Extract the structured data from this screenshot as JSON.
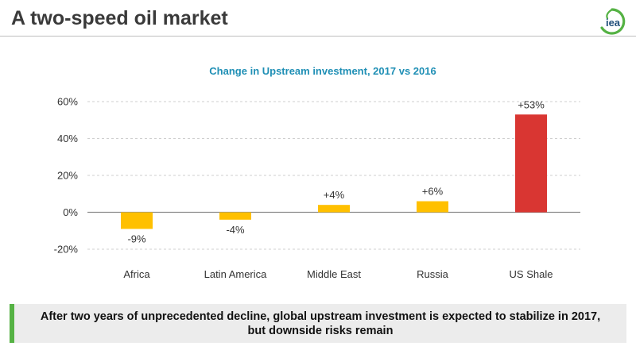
{
  "header": {
    "title": "A two-speed oil market",
    "logo_text": "iea"
  },
  "colors": {
    "regular_bar": "#ffc000",
    "highlight_bar": "#d93632",
    "title_color": "#1f8fb5",
    "footer_accent": "#55b244"
  },
  "chart_data": {
    "type": "bar",
    "title": "Change in Upstream investment, 2017 vs 2016",
    "categories": [
      "Africa",
      "Latin America",
      "Middle East",
      "Russia",
      "US Shale"
    ],
    "values": [
      -9,
      -4,
      4,
      6,
      53
    ],
    "value_labels": [
      "-9%",
      "-4%",
      "+4%",
      "+6%",
      "+53%"
    ],
    "highlight": [
      false,
      false,
      false,
      false,
      true
    ],
    "yticks": [
      -20,
      0,
      20,
      40,
      60
    ],
    "ytick_labels": [
      "-20%",
      "0%",
      "20%",
      "40%",
      "60%"
    ],
    "ylim": [
      -20,
      60
    ],
    "grid": true,
    "legend": "none",
    "xlabel": "",
    "ylabel": ""
  },
  "footer": {
    "text": "After two years of unprecedented decline, global upstream investment is expected to stabilize in 2017,\nbut downside risks remain"
  }
}
